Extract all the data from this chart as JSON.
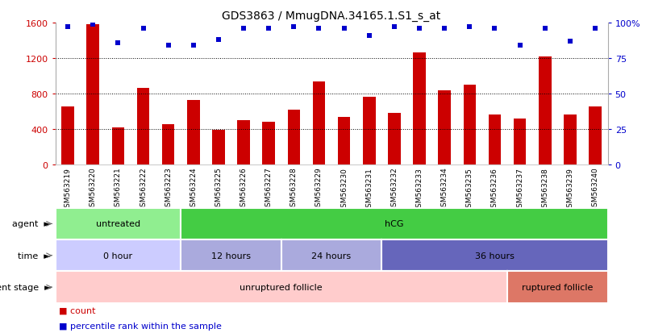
{
  "title": "GDS3863 / MmugDNA.34165.1.S1_s_at",
  "samples": [
    "GSM563219",
    "GSM563220",
    "GSM563221",
    "GSM563222",
    "GSM563223",
    "GSM563224",
    "GSM563225",
    "GSM563226",
    "GSM563227",
    "GSM563228",
    "GSM563229",
    "GSM563230",
    "GSM563231",
    "GSM563232",
    "GSM563233",
    "GSM563234",
    "GSM563235",
    "GSM563236",
    "GSM563237",
    "GSM563238",
    "GSM563239",
    "GSM563240"
  ],
  "counts": [
    650,
    1580,
    420,
    860,
    450,
    730,
    390,
    500,
    480,
    620,
    940,
    540,
    760,
    580,
    1260,
    840,
    900,
    560,
    520,
    1220,
    560,
    650
  ],
  "percentiles": [
    97,
    99,
    86,
    96,
    84,
    84,
    88,
    96,
    96,
    97,
    96,
    96,
    91,
    97,
    96,
    96,
    97,
    96,
    84,
    96,
    87,
    96
  ],
  "bar_color": "#cc0000",
  "dot_color": "#0000cc",
  "ylim_left": [
    0,
    1600
  ],
  "yticks_left": [
    0,
    400,
    800,
    1200,
    1600
  ],
  "ylim_right": [
    0,
    100
  ],
  "yticks_right": [
    0,
    25,
    50,
    75,
    100
  ],
  "agent_groups": [
    {
      "label": "untreated",
      "start": 0,
      "end": 5,
      "color": "#90ee90"
    },
    {
      "label": "hCG",
      "start": 5,
      "end": 22,
      "color": "#44cc44"
    }
  ],
  "time_groups": [
    {
      "label": "0 hour",
      "start": 0,
      "end": 5,
      "color": "#ccccff"
    },
    {
      "label": "12 hours",
      "start": 5,
      "end": 9,
      "color": "#aaaadd"
    },
    {
      "label": "24 hours",
      "start": 9,
      "end": 13,
      "color": "#aaaadd"
    },
    {
      "label": "36 hours",
      "start": 13,
      "end": 22,
      "color": "#6666bb"
    }
  ],
  "dev_groups": [
    {
      "label": "unruptured follicle",
      "start": 0,
      "end": 18,
      "color": "#ffcccc"
    },
    {
      "label": "ruptured follicle",
      "start": 18,
      "end": 22,
      "color": "#dd7766"
    }
  ],
  "background_color": "#ffffff",
  "legend_count_color": "#cc0000",
  "legend_dot_color": "#0000cc"
}
